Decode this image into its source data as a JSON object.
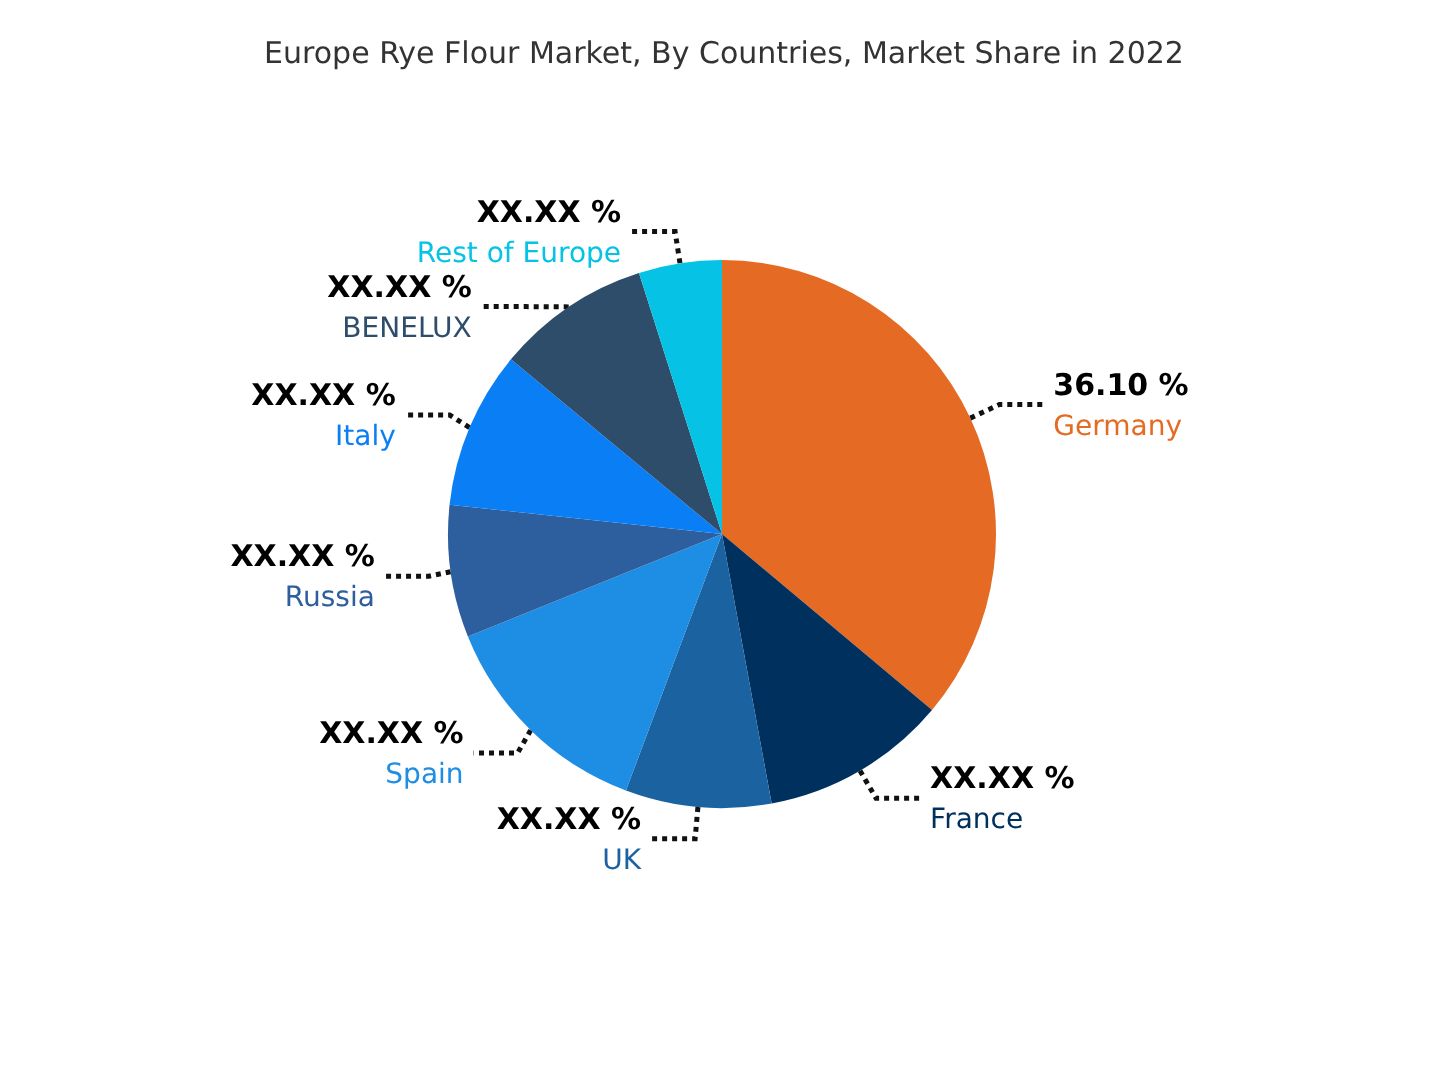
{
  "chart_data": {
    "type": "pie",
    "title": "Europe Rye Flour Market, By Countries, Market Share in 2022",
    "categories": [
      "Germany",
      "France",
      "UK",
      "Spain",
      "Russia",
      "Italy",
      "BENELUX",
      "Rest of Europe"
    ],
    "values": [
      36.1,
      11.0,
      8.6,
      13.2,
      7.8,
      9.3,
      9.1,
      4.9
    ],
    "colors": [
      "#e56b25",
      "#00305e",
      "#1a62a0",
      "#1e8de4",
      "#2d5f9e",
      "#0a7ef5",
      "#2d4d6b",
      "#06c3e6"
    ],
    "value_labels": [
      "36.10 %",
      "XX.XX %",
      "XX.XX %",
      "XX.XX %",
      "XX.XX %",
      "XX.XX %",
      "XX.XX %",
      "XX.XX %"
    ]
  }
}
